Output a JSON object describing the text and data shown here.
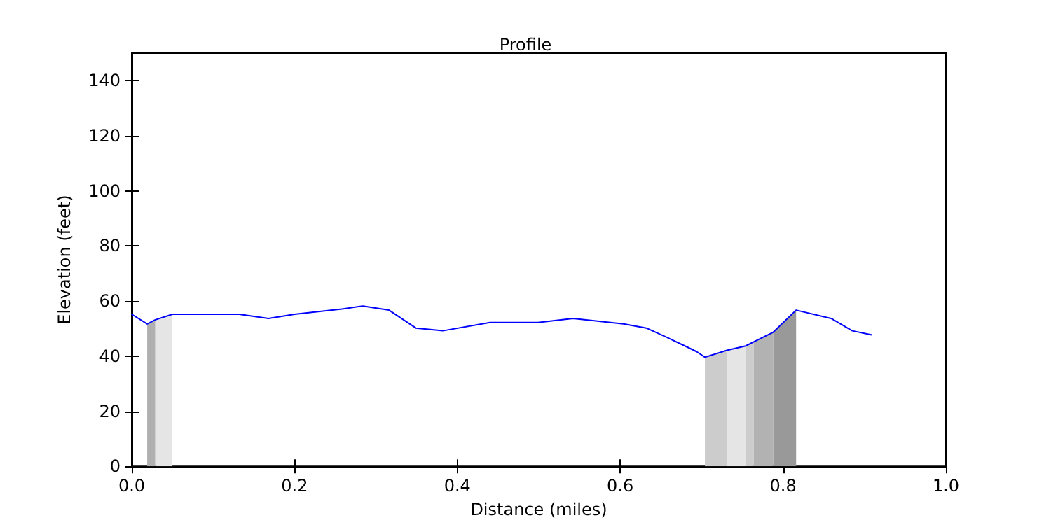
{
  "chart_data": {
    "type": "line",
    "title": "Profile",
    "xlabel": "Distance (miles)",
    "ylabel": "Elevation (feet)",
    "xlim": [
      0,
      1
    ],
    "xticks": [
      {
        "value": 0,
        "label": "0.0"
      },
      0.2,
      0.4,
      0.6,
      0.8,
      {
        "value": 1,
        "label": "1.0"
      }
    ],
    "ylim": [
      0,
      150
    ],
    "yticks": [
      0,
      20,
      40,
      60,
      80,
      100,
      120,
      140
    ],
    "marker": "none",
    "line_style": "solid",
    "series": [
      {
        "type": "area",
        "color": "#b0b0b0",
        "x": [
          0.019,
          0.029
        ],
        "values": [
          51.7,
          53.2
        ]
      },
      {
        "type": "area",
        "color": "#e5e5e5",
        "x": [
          0.029,
          0.05
        ],
        "values": [
          53.2,
          55.2
        ]
      },
      {
        "type": "area",
        "color": "#cccccc",
        "x": [
          0.704,
          0.731
        ],
        "values": [
          39.6,
          42.1
        ]
      },
      {
        "type": "area",
        "color": "#e5e5e5",
        "x": [
          0.731,
          0.754
        ],
        "values": [
          42.1,
          43.7
        ]
      },
      {
        "type": "area",
        "color": "#cccccc",
        "x": [
          0.754,
          0.764
        ],
        "values": [
          43.7,
          45.2
        ]
      },
      {
        "type": "area",
        "color": "#b2b2b2",
        "x": [
          0.764,
          0.788
        ],
        "values": [
          45.2,
          48.7
        ]
      },
      {
        "type": "area",
        "color": "#999999",
        "x": [
          0.788,
          0.816
        ],
        "values": [
          48.7,
          56.7
        ]
      },
      {
        "color": "#0000ff",
        "x": [
          0,
          0.019,
          0.029,
          0.05,
          0.132,
          0.168,
          0.2,
          0.26,
          0.284,
          0.316,
          0.349,
          0.382,
          0.44,
          0.499,
          0.542,
          0.604,
          0.632,
          0.658,
          0.683,
          0.694,
          0.704,
          0.731,
          0.754,
          0.764,
          0.788,
          0.816,
          0.859,
          0.885,
          0.909
        ],
        "values": [
          55.2,
          51.7,
          53.2,
          55.2,
          55.2,
          53.7,
          55.2,
          57.2,
          58.2,
          56.7,
          50.2,
          49.2,
          52.2,
          52.2,
          53.7,
          51.7,
          50.2,
          46.7,
          43.2,
          41.6,
          39.6,
          42.1,
          43.7,
          45.2,
          48.7,
          56.7,
          53.7,
          49.2,
          47.7
        ]
      }
    ]
  }
}
